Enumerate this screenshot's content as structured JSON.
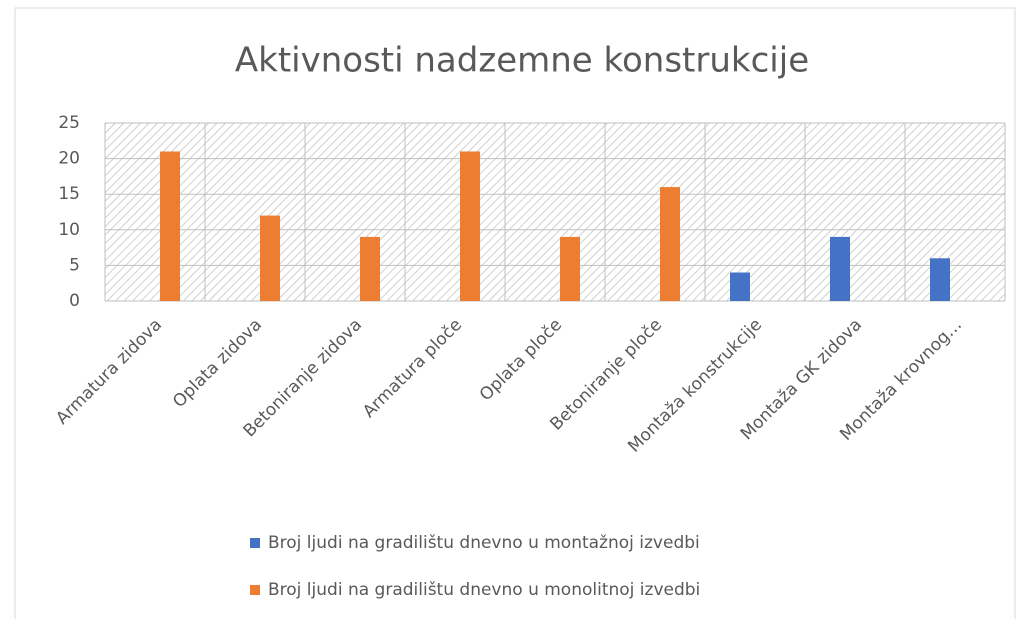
{
  "chart_data": {
    "type": "bar",
    "title": "Aktivnosti nadzemne konstrukcije",
    "categories": [
      "Armatura zidova",
      "Oplata zidova",
      "Betoniranje zidova",
      "Armatura ploče",
      "Oplata ploče",
      "Betoniranje ploče",
      "Montaža konstrukcije",
      "Montaža GK zidova",
      "Montaža krovnog…"
    ],
    "series": [
      {
        "name": "Broj ljudi na gradilištu dnevno u montažnoj izvedbi",
        "color": "#4472c4",
        "values": [
          0,
          0,
          0,
          0,
          0,
          0,
          4,
          9,
          6
        ]
      },
      {
        "name": "Broj ljudi na gradilištu dnevno u monolitnoj izvedbi",
        "color": "#ed7d31",
        "values": [
          21,
          12,
          9,
          21,
          9,
          16,
          0,
          0,
          0
        ]
      }
    ],
    "ylim": [
      0,
      25
    ],
    "yticks": [
      0,
      5,
      10,
      15,
      20,
      25
    ],
    "grid": true
  }
}
